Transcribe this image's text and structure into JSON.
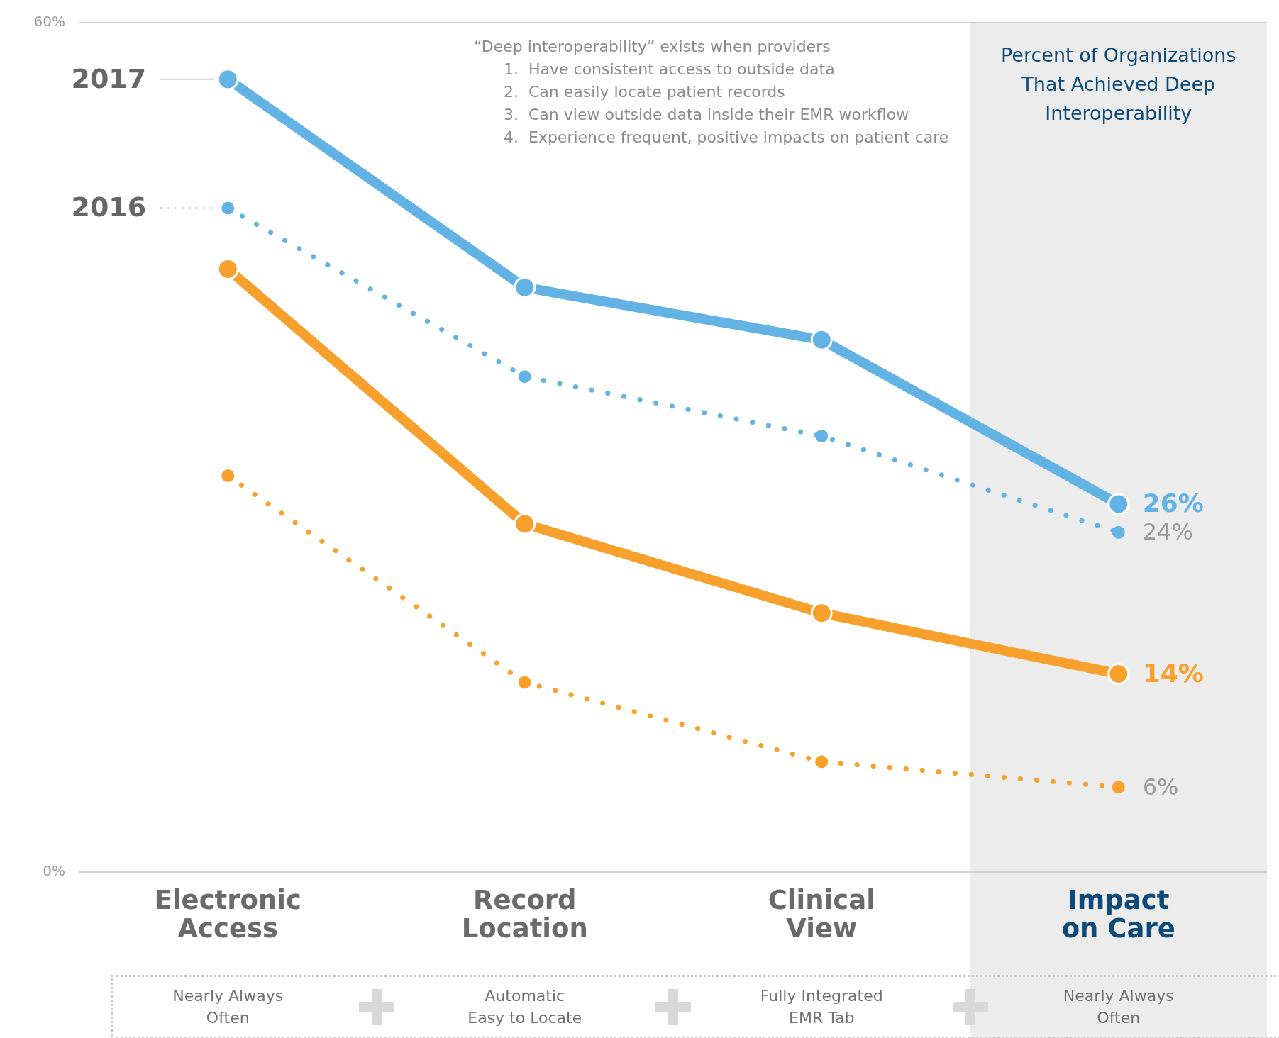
{
  "chart_data": {
    "type": "line",
    "categories": [
      "Electronic Access",
      "Record Location",
      "Clinical View",
      "Impact on Care"
    ],
    "ylim": [
      0,
      60
    ],
    "yticks": [
      {
        "value": 0,
        "label": "0%"
      },
      {
        "value": 60,
        "label": "60%"
      }
    ],
    "legend": false,
    "marker": "circle",
    "series": [
      {
        "name": "2017",
        "color": "#62b3e4",
        "line_style": "solid",
        "values": [
          56,
          41.3,
          37.6,
          26
        ],
        "value_labels": [
          null,
          null,
          null,
          "26%"
        ]
      },
      {
        "name": "2016",
        "color": "#62b3e4",
        "line_style": "dotted",
        "values": [
          46.9,
          35,
          30.8,
          24
        ],
        "value_labels": [
          null,
          null,
          null,
          "24%"
        ]
      },
      {
        "color": "#f7a02c",
        "line_style": "solid",
        "values": [
          42.6,
          24.6,
          18.3,
          14
        ],
        "value_labels": [
          null,
          null,
          null,
          "14%"
        ]
      },
      {
        "color": "#f7a02c",
        "line_style": "dotted",
        "values": [
          28,
          13.4,
          7.8,
          6
        ],
        "value_labels": [
          null,
          null,
          null,
          "6%"
        ]
      }
    ],
    "bands": [
      {
        "axis": "x",
        "from": "Impact on Care",
        "to": "Impact on Care",
        "color": "#ececec",
        "label": "Percent of Organizations That Achieved Deep Interoperability"
      }
    ],
    "annotations": [
      "“Deep interoperability” exists when providers",
      "1.  Have consistent access to outside data",
      "2.  Can easily locate patient records",
      "3.  Can view outside data inside their EMR workflow",
      "4.  Experience frequent, positive impacts on patient care",
      "Nearly Always\nOften",
      "Automatic\nEasy to Locate",
      "Fully Integrated\nEMR Tab",
      "Nearly Always\nOften"
    ]
  }
}
